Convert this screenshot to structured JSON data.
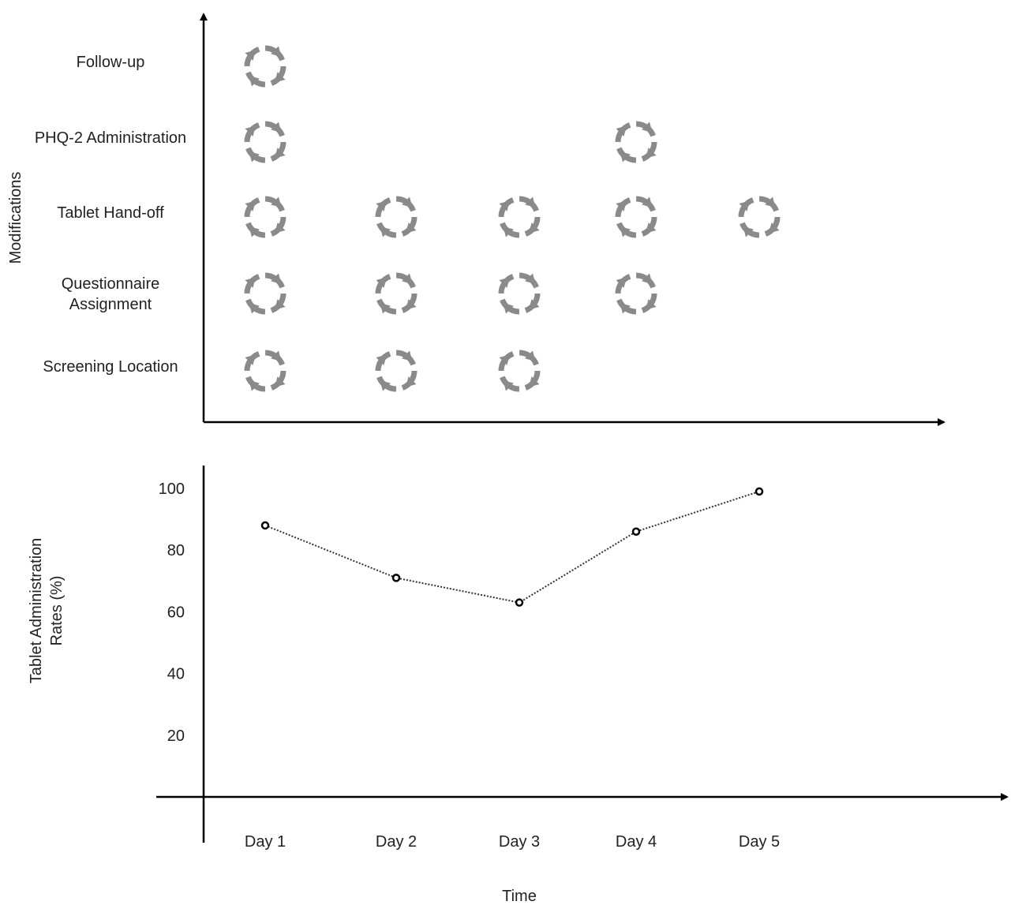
{
  "chart_data": [
    {
      "type": "scatter",
      "ylabel": "Modifications",
      "categories": [
        "Day 1",
        "Day 2",
        "Day 3",
        "Day 4",
        "Day 5"
      ],
      "rows": [
        {
          "label": "Follow-up",
          "days": [
            "Day 1"
          ]
        },
        {
          "label": "PHQ-2 Administration",
          "days": [
            "Day 1",
            "Day 4"
          ]
        },
        {
          "label": "Tablet Hand-off",
          "days": [
            "Day 1",
            "Day 2",
            "Day 3",
            "Day 4",
            "Day 5"
          ]
        },
        {
          "label": "Questionnaire Assignment",
          "days": [
            "Day 1",
            "Day 2",
            "Day 3",
            "Day 4"
          ]
        },
        {
          "label": "Screening Location",
          "days": [
            "Day 1",
            "Day 2",
            "Day 3"
          ]
        }
      ],
      "marker_icon": "cycle-arrows-icon",
      "marker_color": "#8a8a8a"
    },
    {
      "type": "line",
      "xlabel": "Time",
      "ylabel": "Tablet Administration Rates (%)",
      "categories": [
        "Day 1",
        "Day 2",
        "Day 3",
        "Day 4",
        "Day 5"
      ],
      "yticks": [
        "20",
        "40",
        "60",
        "80",
        "100"
      ],
      "ylim": [
        0,
        100
      ],
      "series": [
        {
          "values": [
            88,
            71,
            63,
            86,
            99
          ]
        }
      ],
      "line_style": "dotted",
      "line_color": "#333333"
    }
  ]
}
